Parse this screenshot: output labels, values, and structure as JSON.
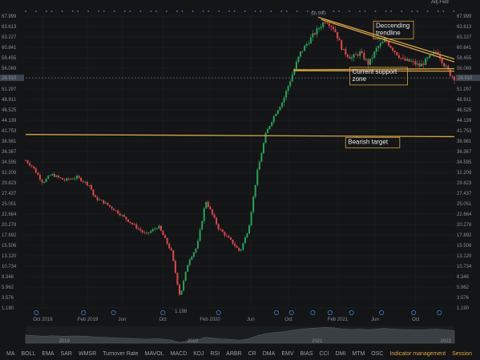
{
  "chart_data": {
    "type": "candlestick",
    "title": "",
    "xlabel": "",
    "ylabel": "",
    "y_scale": "log",
    "ylim": [
      1.196,
      67.999
    ],
    "y_ticks": [
      "67.999",
      "63.613",
      "63.227",
      "60.841",
      "58.455",
      "56.069",
      "53.683",
      "51.297",
      "48.911",
      "46.525",
      "44.139",
      "41.753",
      "38.981",
      "36.367",
      "34.595",
      "32.209",
      "29.823",
      "27.437",
      "25.051",
      "22.664",
      "20.278",
      "17.892",
      "15.506",
      "13.120",
      "10.734",
      "8.348",
      "5.962",
      "3.576",
      "1.190"
    ],
    "x_ticks": [
      "Oct 2018",
      "Feb 2019",
      "Jun",
      "Oct",
      "Feb 2020",
      "Jun",
      "Oct",
      "Feb 2021",
      "Jun",
      "Oct"
    ],
    "nav_ticks": [
      "2019",
      "2020",
      "2021",
      "2022"
    ],
    "last_price": "28.910",
    "last_price_right": "28.910",
    "max_label": "66.990",
    "min_label": "1.198",
    "adj_label": "Adj Fwd",
    "anchors": [
      {
        "x": 0.0,
        "price": 9.2
      },
      {
        "x": 0.015,
        "price": 8.5
      },
      {
        "x": 0.04,
        "price": 6.8
      },
      {
        "x": 0.06,
        "price": 7.6
      },
      {
        "x": 0.09,
        "price": 7.0
      },
      {
        "x": 0.12,
        "price": 7.3
      },
      {
        "x": 0.15,
        "price": 6.5
      },
      {
        "x": 0.16,
        "price": 5.5
      },
      {
        "x": 0.18,
        "price": 5.2
      },
      {
        "x": 0.21,
        "price": 4.6
      },
      {
        "x": 0.25,
        "price": 3.8
      },
      {
        "x": 0.28,
        "price": 3.3
      },
      {
        "x": 0.31,
        "price": 3.7
      },
      {
        "x": 0.34,
        "price": 2.6
      },
      {
        "x": 0.36,
        "price": 1.4
      },
      {
        "x": 0.38,
        "price": 2.3
      },
      {
        "x": 0.4,
        "price": 2.8
      },
      {
        "x": 0.42,
        "price": 5.3
      },
      {
        "x": 0.45,
        "price": 3.6
      },
      {
        "x": 0.48,
        "price": 3.0
      },
      {
        "x": 0.5,
        "price": 2.6
      },
      {
        "x": 0.52,
        "price": 3.6
      },
      {
        "x": 0.54,
        "price": 7.8
      },
      {
        "x": 0.56,
        "price": 13.3
      },
      {
        "x": 0.58,
        "price": 17.2
      },
      {
        "x": 0.6,
        "price": 21.0
      },
      {
        "x": 0.62,
        "price": 29.3
      },
      {
        "x": 0.64,
        "price": 40.5
      },
      {
        "x": 0.66,
        "price": 48.0
      },
      {
        "x": 0.68,
        "price": 56.0
      },
      {
        "x": 0.7,
        "price": 64.5
      },
      {
        "x": 0.72,
        "price": 57.0
      },
      {
        "x": 0.74,
        "price": 42.0
      },
      {
        "x": 0.76,
        "price": 38.0
      },
      {
        "x": 0.78,
        "price": 41.0
      },
      {
        "x": 0.8,
        "price": 35.0
      },
      {
        "x": 0.82,
        "price": 44.0
      },
      {
        "x": 0.84,
        "price": 48.5
      },
      {
        "x": 0.86,
        "price": 42.0
      },
      {
        "x": 0.88,
        "price": 37.0
      },
      {
        "x": 0.9,
        "price": 36.0
      },
      {
        "x": 0.92,
        "price": 34.0
      },
      {
        "x": 0.94,
        "price": 38.0
      },
      {
        "x": 0.96,
        "price": 42.0
      },
      {
        "x": 0.975,
        "price": 35.0
      },
      {
        "x": 0.99,
        "price": 30.5
      },
      {
        "x": 1.0,
        "price": 28.9
      }
    ],
    "lines": [
      {
        "name": "descending-trendline",
        "x1": 0.682,
        "p1": 66.99,
        "x2": 1.0,
        "p2": 37.5,
        "color": "#d9a441"
      },
      {
        "name": "descending-trendline-inner",
        "x1": 0.69,
        "p1": 64.8,
        "x2": 1.0,
        "p2": 36.0,
        "color": "#d9a441"
      },
      {
        "name": "current-support-upper",
        "x1": 0.625,
        "p1": 32.3,
        "x2": 1.0,
        "p2": 32.8,
        "color": "#d9a441"
      },
      {
        "name": "current-support-lower",
        "x1": 0.625,
        "p1": 31.9,
        "x2": 1.0,
        "p2": 31.7,
        "color": "#d9a441"
      },
      {
        "name": "bearish-target-line",
        "x1": 0.0,
        "p1": 13.2,
        "x2": 1.0,
        "p2": 12.8,
        "color": "#d9a441"
      },
      {
        "name": "last-price-line",
        "x1": 0.0,
        "p1": 28.91,
        "x2": 1.0,
        "p2": 28.91,
        "color": "#6b7b8c"
      }
    ],
    "annotations": [
      {
        "name": "descending-trendline-label",
        "lines": [
          "Deccending",
          "trendline"
        ],
        "x": 0.815,
        "price": 58.0
      },
      {
        "name": "current-support-label",
        "lines": [
          "Current support",
          "zone"
        ],
        "x": 0.76,
        "price": 30.6
      },
      {
        "name": "bearish-target-label",
        "lines": [
          "Bearish target"
        ],
        "x": 0.75,
        "price": 11.6
      }
    ],
    "event_markers": [
      0.025,
      0.135,
      0.205,
      0.32,
      0.45,
      0.585,
      0.62,
      0.67,
      0.71,
      0.76,
      0.83,
      0.905,
      0.965
    ]
  },
  "toolbar": {
    "items": [
      "MA",
      "BOLL",
      "EMA",
      "SAR",
      "WMSR",
      "Turnover Rate",
      "MAVOL",
      "MACD",
      "KDJ",
      "RSI",
      "ARBR",
      "CR",
      "DMA",
      "EMV",
      "BIAS",
      "CCI",
      "DMI",
      "MTM",
      "OSC"
    ],
    "indicator_management": "Indicator management",
    "session": "Session"
  },
  "colors": {
    "up": "#26a65b",
    "down": "#e0474c",
    "trend": "#d9a441",
    "background": "#131517",
    "grid": "#1f2327",
    "marker": "#3d7fd4"
  }
}
